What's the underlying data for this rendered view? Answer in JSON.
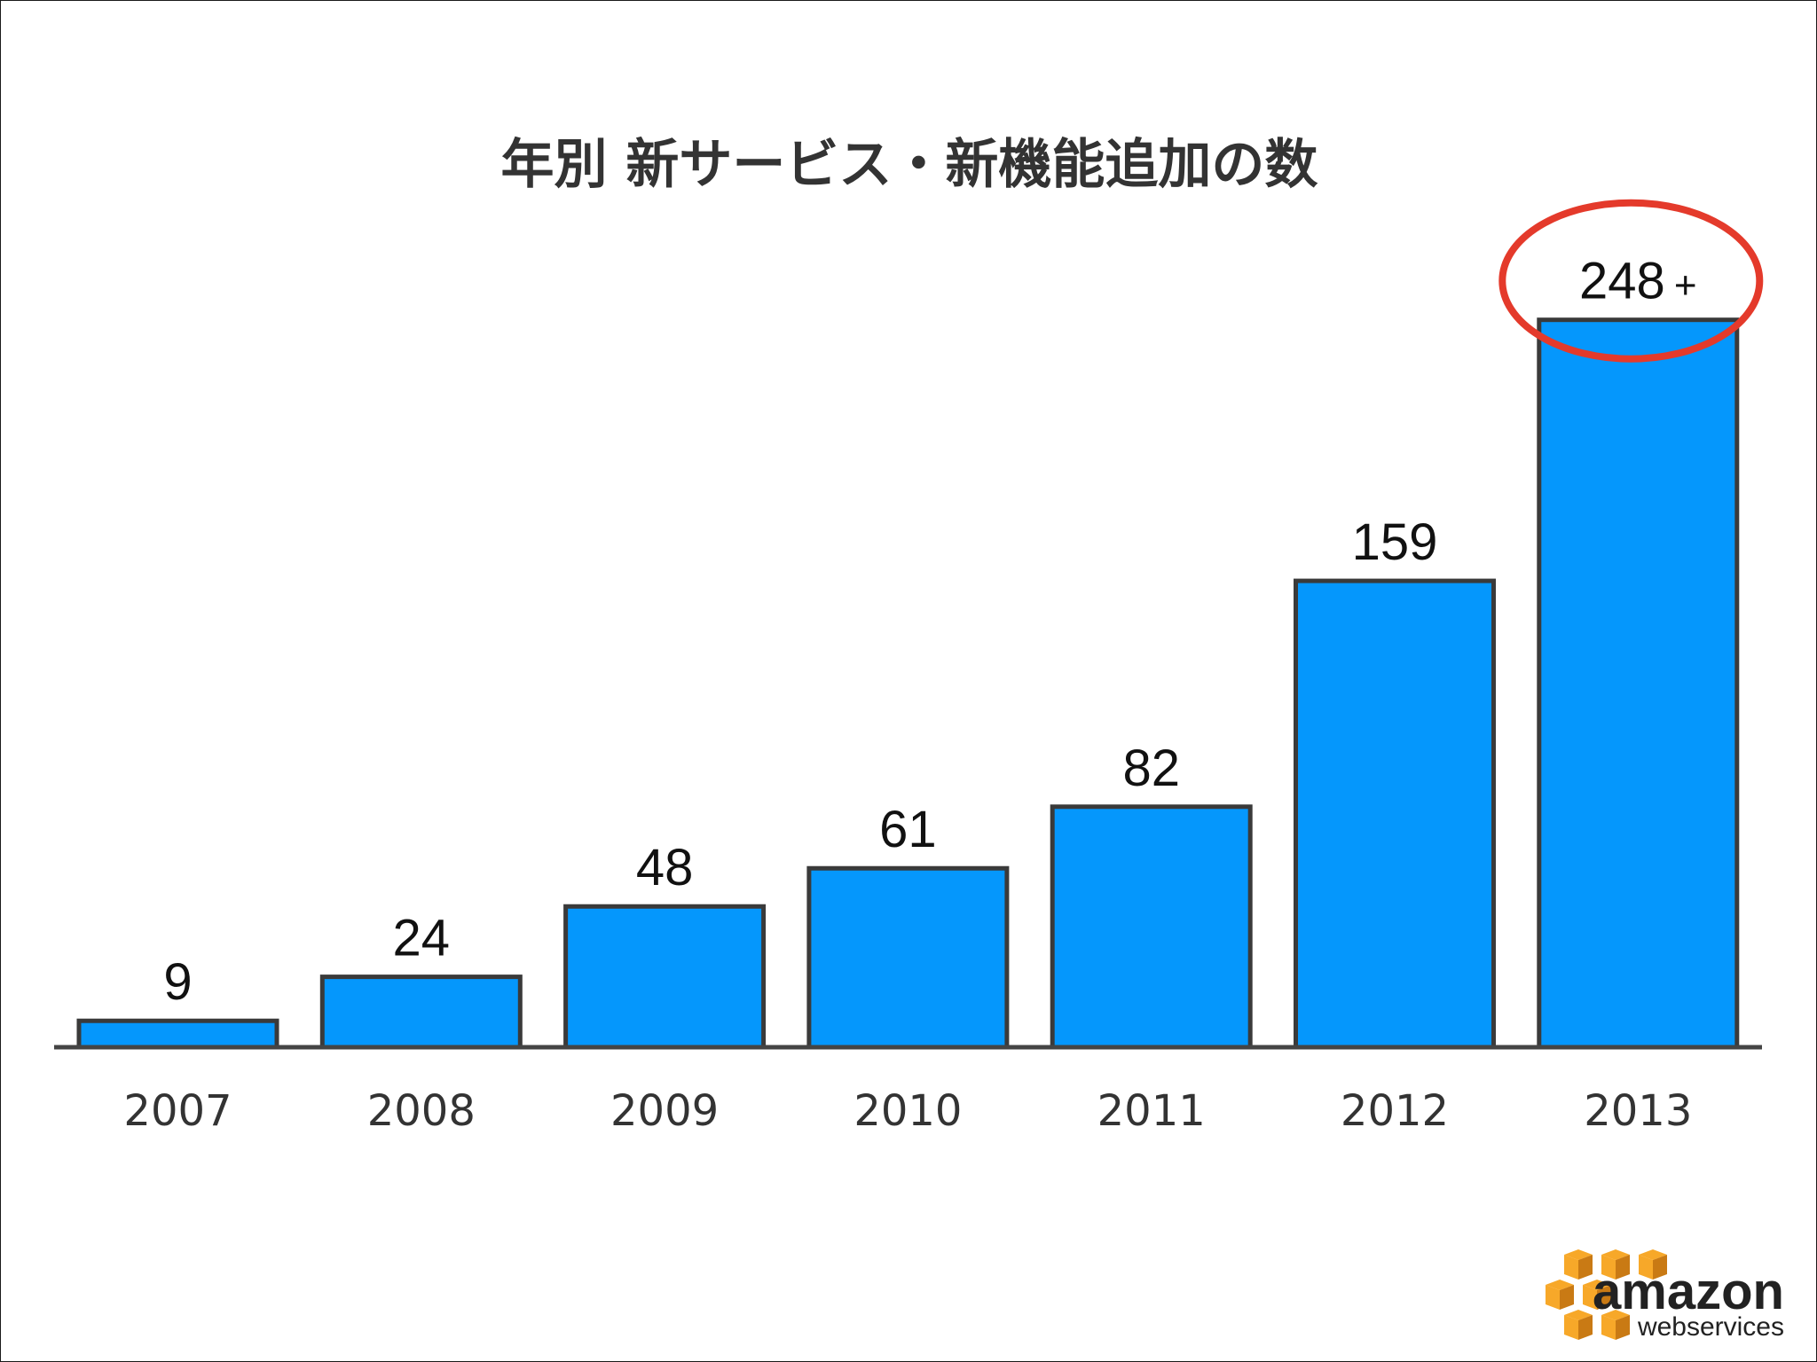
{
  "chart_data": {
    "type": "bar",
    "title": "年別 新サービス・新機能追加の数",
    "categories": [
      "2007",
      "2008",
      "2009",
      "2010",
      "2011",
      "2012",
      "2013"
    ],
    "values": [
      9,
      24,
      48,
      61,
      82,
      159,
      248
    ],
    "value_labels": [
      "9",
      "24",
      "48",
      "61",
      "82",
      "159",
      "248"
    ],
    "value_suffix": [
      "",
      "",
      "",
      "",
      "",
      "",
      "+"
    ],
    "highlight": {
      "category": "2013",
      "style": "red-ellipse"
    },
    "ylim": [
      0,
      260
    ],
    "grid": false,
    "legend": "none",
    "colors": {
      "bar_fill": "#0597fc",
      "bar_stroke": "#3a3a3a",
      "highlight": "#e43a2b",
      "axis": "#444444"
    }
  },
  "logo": {
    "icon": "aws-cubes-icon",
    "word": "amazon",
    "sub": "webservices",
    "colors": {
      "cube": "#f7a829",
      "cube_dark": "#c97a14"
    }
  }
}
